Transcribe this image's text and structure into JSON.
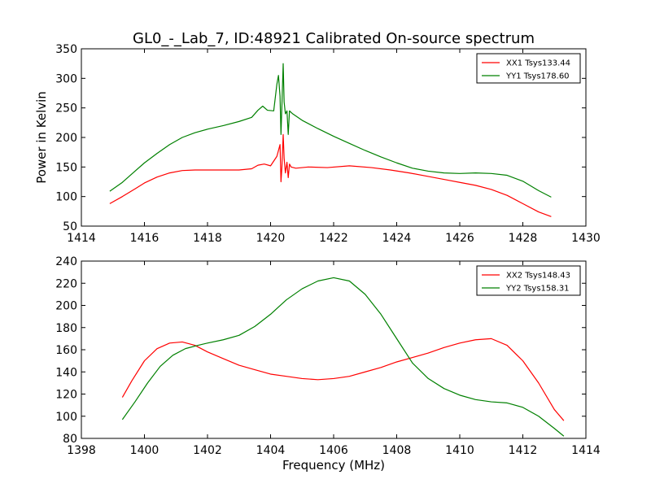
{
  "chart_data": [
    {
      "type": "line",
      "title": "GL0_-_Lab_7, ID:48921 Calibrated On-source spectrum",
      "xlabel": "",
      "ylabel": "Power in Kelvin",
      "xlim": [
        1414,
        1430
      ],
      "ylim": [
        50,
        350
      ],
      "xticks": [
        1414,
        1416,
        1418,
        1420,
        1422,
        1424,
        1426,
        1428,
        1430
      ],
      "yticks": [
        50,
        100,
        150,
        200,
        250,
        300,
        350
      ],
      "legend_position": "top-right",
      "series": [
        {
          "name": "XX1 Tsys133.44",
          "color": "#ff0000",
          "x": [
            1414.9,
            1415.3,
            1415.7,
            1416.0,
            1416.4,
            1416.8,
            1417.2,
            1417.6,
            1418.0,
            1418.5,
            1419.0,
            1419.4,
            1419.6,
            1419.8,
            1420.0,
            1420.2,
            1420.25,
            1420.3,
            1420.33,
            1420.36,
            1420.4,
            1420.43,
            1420.47,
            1420.52,
            1420.56,
            1420.6,
            1420.65,
            1420.8,
            1421.2,
            1421.8,
            1422.5,
            1423.2,
            1423.8,
            1424.4,
            1425.0,
            1425.6,
            1426.0,
            1426.5,
            1427.0,
            1427.5,
            1428.0,
            1428.5,
            1428.9
          ],
          "y": [
            88,
            100,
            113,
            123,
            133,
            140,
            144,
            145,
            145,
            145,
            145,
            147,
            153,
            155,
            152,
            168,
            178,
            188,
            125,
            150,
            205,
            165,
            140,
            158,
            132,
            155,
            150,
            148,
            150,
            149,
            152,
            149,
            145,
            140,
            134,
            128,
            124,
            119,
            112,
            102,
            88,
            74,
            66
          ]
        },
        {
          "name": "YY1 Tsys178.60",
          "color": "#008000",
          "x": [
            1414.9,
            1415.3,
            1415.7,
            1416.0,
            1416.4,
            1416.8,
            1417.2,
            1417.6,
            1418.0,
            1418.5,
            1419.0,
            1419.4,
            1419.6,
            1419.75,
            1419.9,
            1420.1,
            1420.2,
            1420.25,
            1420.3,
            1420.33,
            1420.36,
            1420.4,
            1420.43,
            1420.47,
            1420.52,
            1420.56,
            1420.6,
            1420.7,
            1421.0,
            1421.5,
            1422.0,
            1422.5,
            1423.0,
            1423.5,
            1424.0,
            1424.5,
            1425.0,
            1425.5,
            1426.0,
            1426.5,
            1427.0,
            1427.5,
            1428.0,
            1428.5,
            1428.9
          ],
          "y": [
            109,
            124,
            143,
            157,
            173,
            188,
            200,
            208,
            214,
            220,
            227,
            234,
            246,
            253,
            246,
            245,
            290,
            305,
            270,
            205,
            255,
            325,
            260,
            240,
            245,
            205,
            245,
            240,
            229,
            215,
            202,
            190,
            178,
            167,
            157,
            148,
            143,
            140,
            139,
            140,
            139,
            136,
            126,
            110,
            99
          ]
        }
      ]
    },
    {
      "type": "line",
      "title": "",
      "xlabel": "Frequency (MHz)",
      "ylabel": "",
      "xlim": [
        1398,
        1414
      ],
      "ylim": [
        80,
        240
      ],
      "xticks": [
        1398,
        1400,
        1402,
        1404,
        1406,
        1408,
        1410,
        1412,
        1414
      ],
      "yticks": [
        80,
        100,
        120,
        140,
        160,
        180,
        200,
        220,
        240
      ],
      "legend_position": "top-right",
      "series": [
        {
          "name": "XX2 Tsys148.43",
          "color": "#ff0000",
          "x": [
            1399.3,
            1399.6,
            1400.0,
            1400.4,
            1400.8,
            1401.2,
            1401.6,
            1402.0,
            1402.5,
            1403.0,
            1403.5,
            1404.0,
            1404.5,
            1405.0,
            1405.5,
            1406.0,
            1406.5,
            1407.0,
            1407.5,
            1408.0,
            1408.5,
            1409.0,
            1409.5,
            1410.0,
            1410.5,
            1411.0,
            1411.5,
            1412.0,
            1412.5,
            1413.0,
            1413.3
          ],
          "y": [
            117,
            132,
            150,
            161,
            166,
            167,
            164,
            158,
            152,
            146,
            142,
            138,
            136,
            134,
            133,
            134,
            136,
            140,
            144,
            149,
            153,
            157,
            162,
            166,
            169,
            170,
            164,
            150,
            130,
            106,
            96
          ]
        },
        {
          "name": "YY2 Tsys158.31",
          "color": "#008000",
          "x": [
            1399.3,
            1399.7,
            1400.1,
            1400.5,
            1400.9,
            1401.3,
            1401.7,
            1402.0,
            1402.5,
            1403.0,
            1403.5,
            1404.0,
            1404.5,
            1405.0,
            1405.5,
            1406.0,
            1406.5,
            1407.0,
            1407.5,
            1408.0,
            1408.5,
            1409.0,
            1409.5,
            1410.0,
            1410.5,
            1411.0,
            1411.5,
            1412.0,
            1412.5,
            1413.0,
            1413.3
          ],
          "y": [
            97,
            113,
            130,
            145,
            155,
            161,
            164,
            166,
            169,
            173,
            181,
            192,
            205,
            215,
            222,
            225,
            222,
            210,
            192,
            170,
            148,
            134,
            125,
            119,
            115,
            113,
            112,
            108,
            100,
            89,
            82
          ]
        }
      ]
    }
  ]
}
